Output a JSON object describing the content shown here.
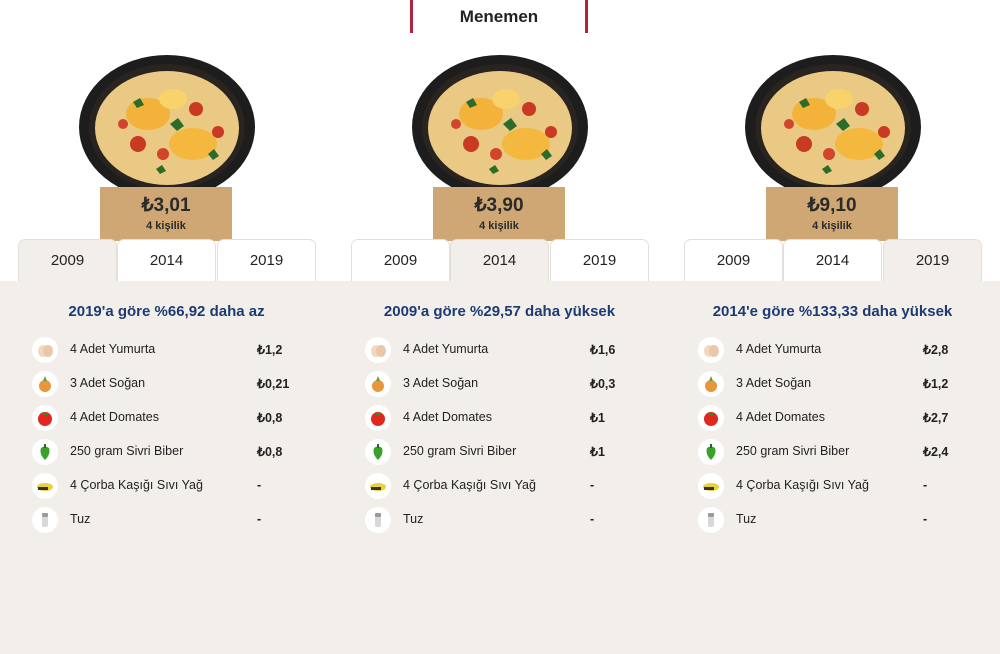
{
  "page": {
    "title": "Menemen"
  },
  "tabs": [
    "2009",
    "2014",
    "2019"
  ],
  "columns": [
    {
      "price": "₺3,01",
      "serves": "4 kişilik",
      "active_year": "2009",
      "comparison": "2019'a göre %66,92 daha az",
      "costs": [
        "₺1,2",
        "₺0,21",
        "₺0,8",
        "₺0,8",
        "-",
        "-"
      ]
    },
    {
      "price": "₺3,90",
      "serves": "4 kişilik",
      "active_year": "2014",
      "comparison": "2009'a göre %29,57 daha yüksek",
      "costs": [
        "₺1,6",
        "₺0,3",
        "₺1",
        "₺1",
        "-",
        "-"
      ]
    },
    {
      "price": "₺9,10",
      "serves": "4 kişilik",
      "active_year": "2019",
      "comparison": "2014'e göre %133,33 daha yüksek",
      "costs": [
        "₺2,8",
        "₺1,2",
        "₺2,7",
        "₺2,4",
        "-",
        "-"
      ]
    }
  ],
  "ingredients": [
    {
      "name": "4 Adet Yumurta",
      "icon": "egg-icon"
    },
    {
      "name": "3 Adet Soğan",
      "icon": "onion-icon"
    },
    {
      "name": "4 Adet Domates",
      "icon": "tomato-icon"
    },
    {
      "name": "250 gram Sivri Biber",
      "icon": "pepper-icon"
    },
    {
      "name": "4 Çorba Kaşığı Sıvı Yağ",
      "icon": "oil-icon"
    },
    {
      "name": "Tuz",
      "icon": "salt-icon"
    }
  ],
  "colors": {
    "accent": "#b0233a",
    "price_box": "#cfa774",
    "comparison_text": "#1f3a73",
    "panel_bg": "#f2efeb"
  }
}
